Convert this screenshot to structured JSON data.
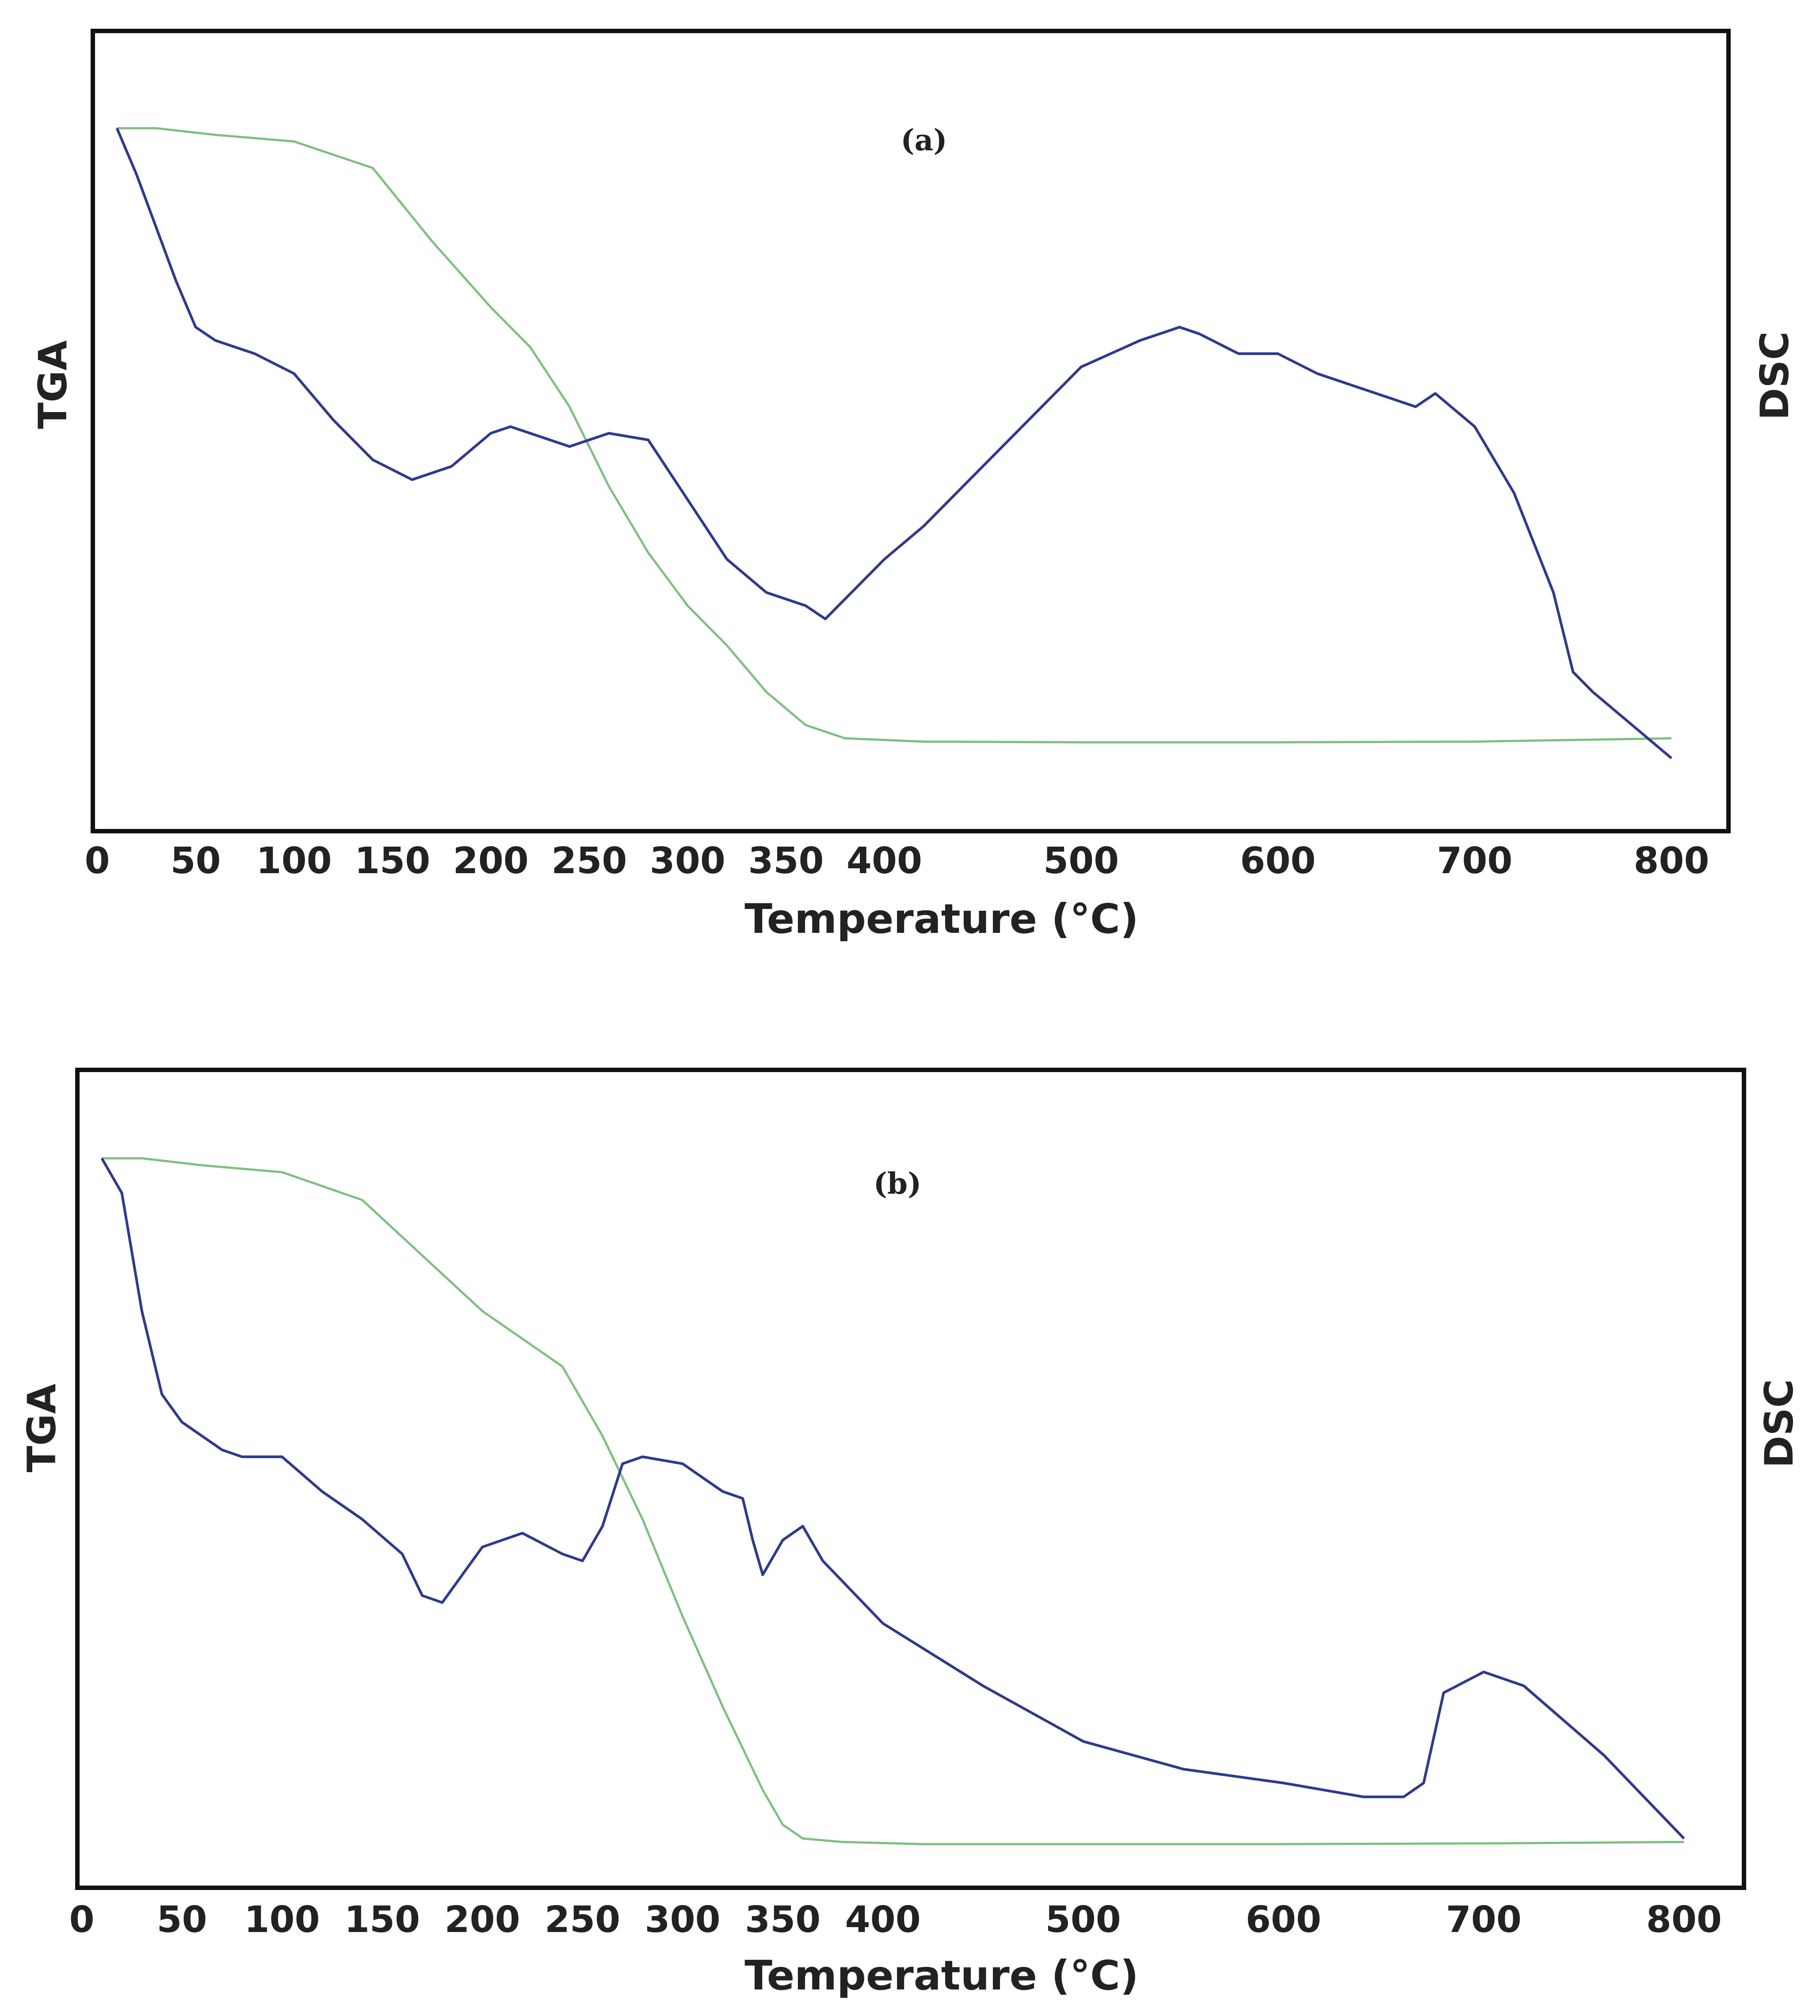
{
  "colors": {
    "tga": "#7fbf7f",
    "dsc": "#2e3a8c",
    "frame": "#111111",
    "text": "#222222"
  },
  "chart_data": [
    {
      "type": "line",
      "panel_label": "(a)",
      "xlabel": "Temperature (°C)",
      "ylabel_left": "TGA",
      "ylabel_right": "DSC",
      "xlim": [
        0,
        820
      ],
      "xticks": [
        "0",
        "50",
        "100",
        "150",
        "200",
        "250",
        "300",
        "350",
        "400",
        "500",
        "600",
        "700",
        "800"
      ],
      "series": [
        {
          "name": "TGA",
          "x": [
            10,
            30,
            60,
            100,
            140,
            170,
            200,
            220,
            240,
            260,
            280,
            300,
            320,
            340,
            360,
            380,
            420,
            500,
            600,
            700,
            800
          ],
          "y": [
            100,
            100,
            99,
            98,
            94,
            83,
            73,
            67,
            58,
            46,
            36,
            28,
            22,
            15,
            10,
            8,
            7.5,
            7.4,
            7.4,
            7.5,
            8
          ]
        },
        {
          "name": "DSC",
          "x": [
            10,
            20,
            30,
            40,
            50,
            60,
            70,
            80,
            100,
            120,
            140,
            160,
            180,
            200,
            210,
            220,
            240,
            260,
            280,
            300,
            320,
            340,
            360,
            370,
            380,
            400,
            420,
            440,
            470,
            500,
            530,
            550,
            560,
            580,
            600,
            620,
            650,
            670,
            680,
            700,
            720,
            740,
            750,
            760,
            780,
            800
          ],
          "y": [
            100,
            93,
            85,
            77,
            70,
            68,
            67,
            66,
            63,
            56,
            50,
            47,
            49,
            54,
            55,
            54,
            52,
            54,
            53,
            44,
            35,
            30,
            28,
            26,
            29,
            35,
            40,
            46,
            55,
            64,
            68,
            70,
            69,
            66,
            66,
            63,
            60,
            58,
            60,
            55,
            45,
            30,
            18,
            15,
            10,
            5
          ]
        }
      ]
    },
    {
      "type": "line",
      "panel_label": "(b)",
      "xlabel": "Temperature (°C)",
      "ylabel_left": "TGA",
      "ylabel_right": "DSC",
      "xlim": [
        0,
        820
      ],
      "xticks": [
        "0",
        "50",
        "100",
        "150",
        "200",
        "250",
        "300",
        "350",
        "400",
        "500",
        "600",
        "700",
        "800"
      ],
      "series": [
        {
          "name": "TGA",
          "x": [
            10,
            30,
            60,
            100,
            140,
            170,
            200,
            220,
            240,
            260,
            280,
            300,
            320,
            340,
            350,
            360,
            380,
            420,
            500,
            600,
            700,
            800
          ],
          "y": [
            100,
            100,
            99,
            98,
            94,
            86,
            78,
            74,
            70,
            60,
            48,
            34,
            21,
            9,
            4,
            2,
            1.5,
            1.2,
            1.2,
            1.2,
            1.3,
            1.5
          ]
        },
        {
          "name": "DSC",
          "x": [
            10,
            20,
            30,
            40,
            50,
            60,
            70,
            80,
            100,
            120,
            140,
            160,
            170,
            180,
            200,
            220,
            240,
            250,
            260,
            270,
            280,
            300,
            320,
            330,
            335,
            340,
            350,
            360,
            370,
            380,
            400,
            450,
            500,
            550,
            600,
            620,
            640,
            660,
            670,
            680,
            700,
            720,
            740,
            760,
            780,
            800
          ],
          "y": [
            100,
            95,
            78,
            66,
            62,
            60,
            58,
            57,
            57,
            52,
            48,
            43,
            37,
            36,
            44,
            46,
            43,
            42,
            47,
            56,
            57,
            56,
            52,
            51,
            45,
            40,
            45,
            47,
            42,
            39,
            33,
            24,
            16,
            12,
            10,
            9,
            8,
            8,
            10,
            23,
            26,
            24,
            19,
            14,
            8,
            2
          ]
        }
      ]
    }
  ]
}
